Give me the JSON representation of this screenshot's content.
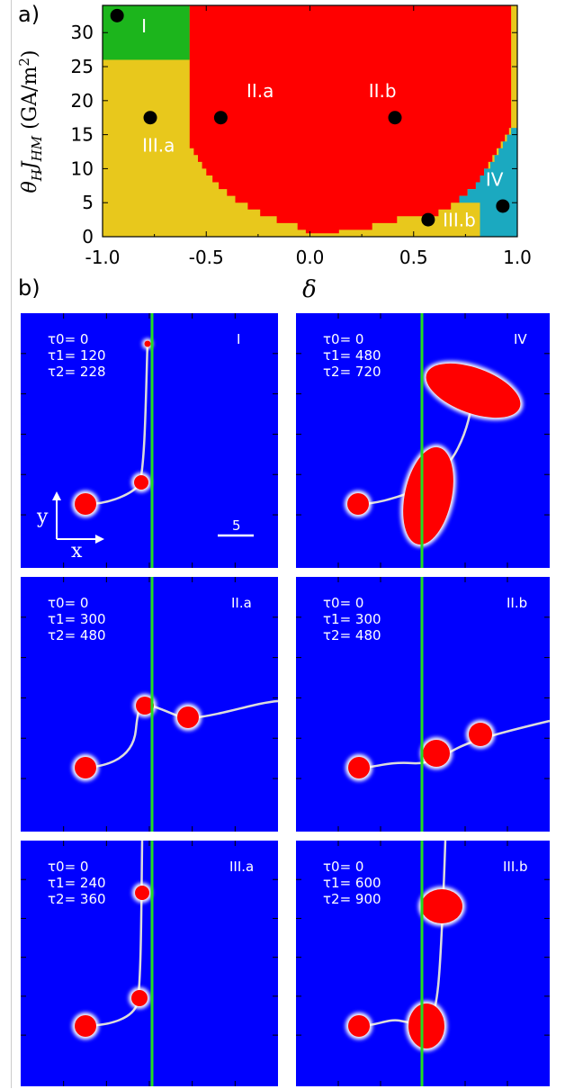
{
  "figure": {
    "label_a": "a)",
    "label_b": "b)"
  },
  "chart_data": {
    "type": "heatmap",
    "title": "",
    "xlabel": "δ",
    "ylabel": "θHJHM (GA/m2)",
    "xlim": [
      -1.0,
      1.0
    ],
    "ylim": [
      0,
      34
    ],
    "xticks": [
      "-1.0",
      "-0.5",
      "0.0",
      "0.5",
      "1.0"
    ],
    "yticks": [
      "0",
      "5",
      "10",
      "15",
      "20",
      "25",
      "30"
    ],
    "regions": [
      {
        "name": "I",
        "color": "#1cb51c"
      },
      {
        "name": "II.a",
        "color": "#ff0000"
      },
      {
        "name": "II.b",
        "color": "#ff0000"
      },
      {
        "name": "III.a",
        "color": "#e8c81c"
      },
      {
        "name": "III.b",
        "color": "#e8c81c"
      },
      {
        "name": "IV",
        "color": "#1ba9c0"
      }
    ],
    "points": [
      {
        "delta": -0.93,
        "J": 32.5
      },
      {
        "delta": -0.77,
        "J": 17.5
      },
      {
        "delta": -0.43,
        "J": 17.5
      },
      {
        "delta": 0.41,
        "J": 17.5
      },
      {
        "delta": 0.57,
        "J": 2.5
      },
      {
        "delta": 0.93,
        "J": 4.5
      }
    ]
  },
  "panels": [
    {
      "name": "I",
      "tau0": "τ0= 0",
      "tau1": "τ1= 120",
      "tau2": "τ2= 228"
    },
    {
      "name": "IV",
      "tau0": "τ0= 0",
      "tau1": "τ1= 480",
      "tau2": "τ2= 720"
    },
    {
      "name": "II.a",
      "tau0": "τ0= 0",
      "tau1": "τ1= 300",
      "tau2": "τ2= 480"
    },
    {
      "name": "II.b",
      "tau0": "τ0= 0",
      "tau1": "τ1= 300",
      "tau2": "τ2= 480"
    },
    {
      "name": "III.a",
      "tau0": "τ0= 0",
      "tau1": "τ1= 240",
      "tau2": "τ2= 360"
    },
    {
      "name": "III.b",
      "tau0": "τ0= 0",
      "tau1": "τ1= 600",
      "tau2": "τ2= 900"
    }
  ],
  "axes_inset": {
    "x": "x",
    "y": "y",
    "scale": "5"
  },
  "colors": {
    "background": "#0000ff",
    "track": "#dcdcdc",
    "boundary": "#22dd22",
    "skyrmion": "#ff0000"
  }
}
